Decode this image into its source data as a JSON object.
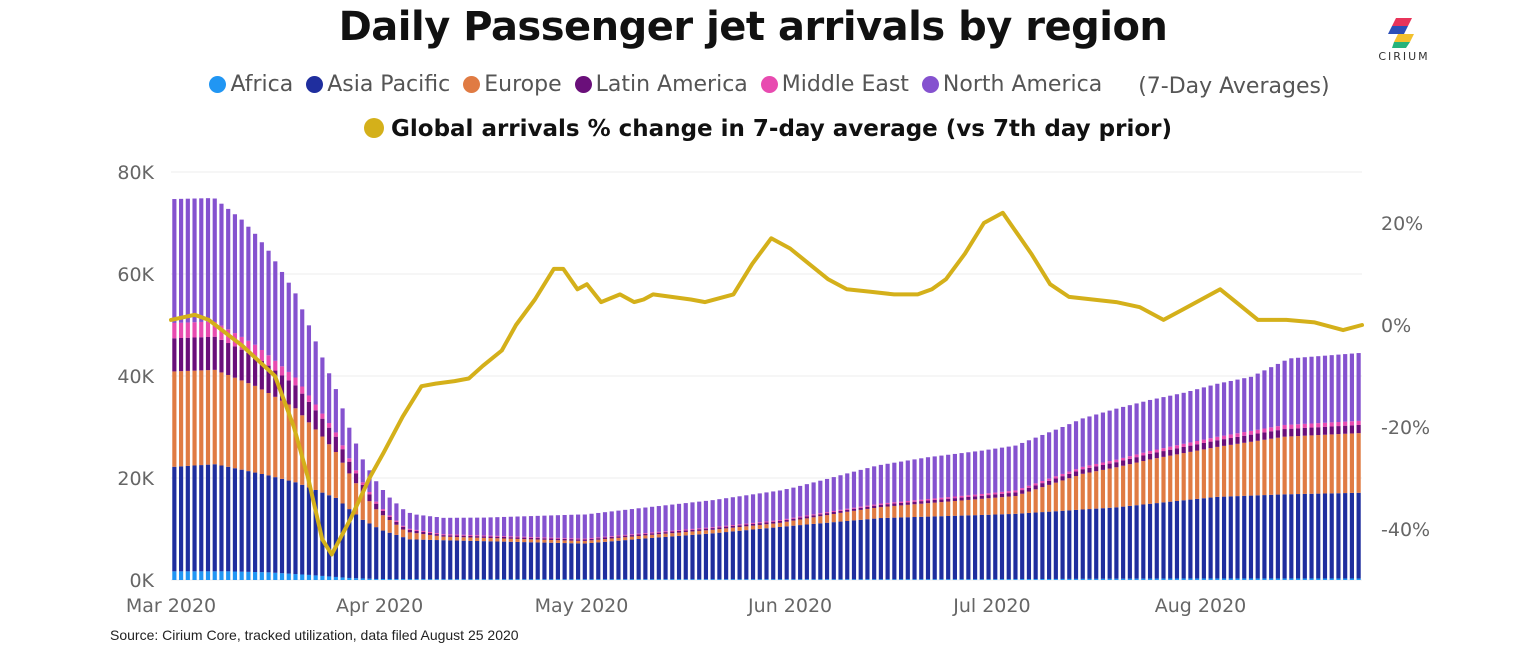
{
  "title": "Daily Passenger jet arrivals by region",
  "legend": {
    "items": [
      {
        "label": "Africa",
        "color": "#2196f3"
      },
      {
        "label": "Asia Pacific",
        "color": "#1f2e9e"
      },
      {
        "label": "Europe",
        "color": "#e07b43"
      },
      {
        "label": "Latin America",
        "color": "#6a0f7a"
      },
      {
        "label": "Middle East",
        "color": "#e84bb0"
      },
      {
        "label": "North America",
        "color": "#8552cf"
      }
    ],
    "note": "(7-Day Averages)",
    "line_label": "Global arrivals % change in 7-day average (vs 7th day prior)",
    "line_color": "#d4b01a"
  },
  "logo": {
    "text": "CIRIUM"
  },
  "source": "Source: Cirium Core, tracked utilization, data filed August 25 2020",
  "chart_data": {
    "type": "bar",
    "stacked": true,
    "title": "Daily Passenger jet arrivals by region",
    "x_ticks": [
      "Mar 2020",
      "Apr 2020",
      "May 2020",
      "Jun 2020",
      "Jul 2020",
      "Aug 2020"
    ],
    "y_left": {
      "ticks": [
        "0K",
        "20K",
        "40K",
        "60K",
        "80K"
      ],
      "range": [
        0,
        80000
      ]
    },
    "y_right": {
      "ticks": [
        "-40%",
        "-20%",
        "0%",
        "20%"
      ],
      "range": [
        -50,
        30
      ]
    },
    "start_date": "2020-03-01",
    "days": 177,
    "series_keypoints": {
      "Africa": [
        [
          0,
          1700
        ],
        [
          8,
          1700
        ],
        [
          14,
          1500
        ],
        [
          20,
          1000
        ],
        [
          26,
          400
        ],
        [
          30,
          200
        ],
        [
          40,
          150
        ],
        [
          70,
          150
        ],
        [
          120,
          150
        ],
        [
          150,
          300
        ],
        [
          176,
          300
        ]
      ],
      "Asia Pacific": [
        [
          0,
          20500
        ],
        [
          6,
          21000
        ],
        [
          12,
          19500
        ],
        [
          18,
          18000
        ],
        [
          24,
          15500
        ],
        [
          28,
          11500
        ],
        [
          31,
          9500
        ],
        [
          35,
          7800
        ],
        [
          45,
          7500
        ],
        [
          61,
          7000
        ],
        [
          70,
          8000
        ],
        [
          80,
          9000
        ],
        [
          92,
          10500
        ],
        [
          105,
          12000
        ],
        [
          125,
          12800
        ],
        [
          140,
          14000
        ],
        [
          155,
          16000
        ],
        [
          165,
          16500
        ],
        [
          176,
          16800
        ]
      ],
      "Europe": [
        [
          0,
          18700
        ],
        [
          6,
          18500
        ],
        [
          12,
          17000
        ],
        [
          18,
          14500
        ],
        [
          22,
          11000
        ],
        [
          26,
          7000
        ],
        [
          30,
          3500
        ],
        [
          34,
          1500
        ],
        [
          40,
          700
        ],
        [
          60,
          500
        ],
        [
          90,
          800
        ],
        [
          100,
          1800
        ],
        [
          110,
          2500
        ],
        [
          125,
          3500
        ],
        [
          135,
          7000
        ],
        [
          145,
          8700
        ],
        [
          155,
          9800
        ],
        [
          165,
          11300
        ],
        [
          176,
          11700
        ]
      ],
      "Latin America": [
        [
          0,
          6500
        ],
        [
          6,
          6500
        ],
        [
          12,
          5800
        ],
        [
          18,
          4500
        ],
        [
          24,
          3000
        ],
        [
          28,
          1600
        ],
        [
          32,
          600
        ],
        [
          40,
          300
        ],
        [
          70,
          300
        ],
        [
          100,
          400
        ],
        [
          120,
          600
        ],
        [
          140,
          1000
        ],
        [
          165,
          1500
        ],
        [
          176,
          1600
        ]
      ],
      "Middle East": [
        [
          0,
          3000
        ],
        [
          5,
          3000
        ],
        [
          10,
          2500
        ],
        [
          16,
          1800
        ],
        [
          22,
          1000
        ],
        [
          28,
          500
        ],
        [
          34,
          200
        ],
        [
          60,
          150
        ],
        [
          100,
          200
        ],
        [
          140,
          500
        ],
        [
          165,
          800
        ],
        [
          176,
          800
        ]
      ],
      "North America": [
        [
          0,
          24300
        ],
        [
          6,
          24200
        ],
        [
          10,
          23000
        ],
        [
          14,
          20500
        ],
        [
          18,
          16500
        ],
        [
          22,
          11000
        ],
        [
          26,
          6000
        ],
        [
          28,
          4500
        ],
        [
          32,
          3500
        ],
        [
          36,
          3000
        ],
        [
          46,
          3500
        ],
        [
          60,
          4700
        ],
        [
          80,
          5300
        ],
        [
          92,
          5900
        ],
        [
          97,
          6500
        ],
        [
          104,
          7500
        ],
        [
          112,
          8200
        ],
        [
          120,
          8500
        ],
        [
          132,
          9200
        ],
        [
          140,
          10000
        ],
        [
          150,
          10000
        ],
        [
          155,
          10400
        ],
        [
          160,
          10600
        ],
        [
          166,
          13000
        ],
        [
          176,
          13300
        ]
      ]
    },
    "line_keypoints": [
      [
        0,
        1
      ],
      [
        5,
        2
      ],
      [
        8,
        1
      ],
      [
        15,
        -4
      ],
      [
        22,
        -10
      ],
      [
        26,
        -20
      ],
      [
        29,
        -30
      ],
      [
        32,
        -42
      ],
      [
        34,
        -45
      ],
      [
        38,
        -38
      ],
      [
        42,
        -30
      ],
      [
        45,
        -25
      ],
      [
        49,
        -18
      ],
      [
        53,
        -12
      ],
      [
        56,
        -11.5
      ],
      [
        60,
        -11
      ],
      [
        63,
        -10.5
      ],
      [
        66,
        -8
      ],
      [
        70,
        -5
      ],
      [
        73,
        0
      ],
      [
        77,
        5
      ],
      [
        81,
        11
      ],
      [
        83,
        11
      ],
      [
        86,
        7
      ],
      [
        88,
        8
      ],
      [
        91,
        4.5
      ],
      [
        95,
        6
      ],
      [
        98,
        4.5
      ],
      [
        100,
        5
      ],
      [
        102,
        6
      ],
      [
        110,
        5
      ],
      [
        113,
        4.5
      ],
      [
        119,
        6
      ],
      [
        123,
        12
      ],
      [
        127,
        17
      ],
      [
        131,
        15
      ],
      [
        135,
        12
      ],
      [
        139,
        9
      ],
      [
        143,
        7
      ],
      [
        148,
        6.5
      ],
      [
        153,
        6
      ],
      [
        158,
        6
      ],
      [
        161,
        7
      ],
      [
        164,
        9
      ],
      [
        168,
        14
      ],
      [
        172,
        20
      ],
      [
        176,
        22
      ],
      [
        179,
        18
      ],
      [
        182,
        14
      ],
      [
        186,
        8
      ],
      [
        190,
        5.5
      ],
      [
        195,
        5
      ],
      [
        200,
        4.5
      ],
      [
        205,
        3.5
      ],
      [
        210,
        1
      ],
      [
        214,
        3
      ],
      [
        218,
        5
      ],
      [
        222,
        7
      ],
      [
        226,
        4
      ],
      [
        230,
        1
      ],
      [
        236,
        1
      ],
      [
        242,
        0.5
      ],
      [
        248,
        -1
      ],
      [
        252,
        0
      ]
    ],
    "line_x_range": [
      0,
      252
    ]
  }
}
